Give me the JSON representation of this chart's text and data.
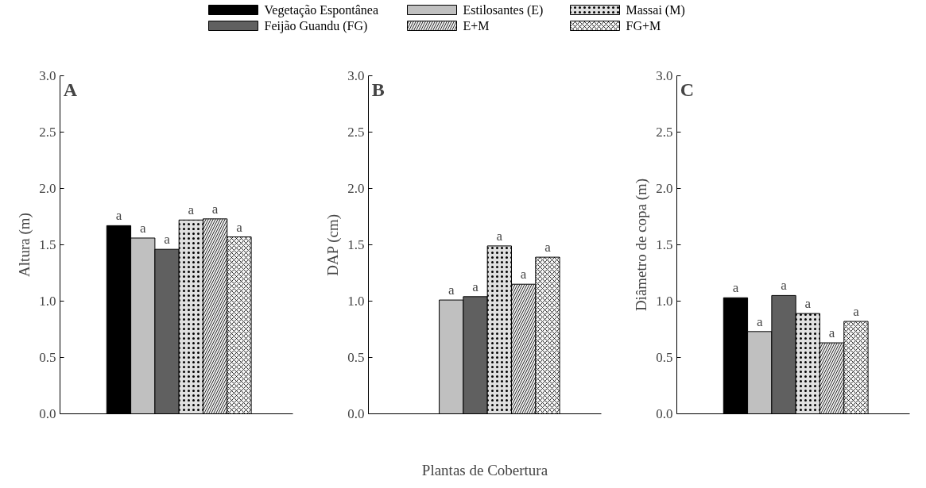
{
  "chart_data": [
    {
      "type": "bar",
      "title": "A",
      "ylabel": "Altura (m)",
      "categories": [
        null
      ],
      "legend": "top",
      "tick_labels": "y",
      "ylim": [
        0,
        3
      ],
      "yticks": [
        {
          "value": 0,
          "label": "0.0"
        },
        {
          "value": 0.5,
          "label": "0.5"
        },
        {
          "value": 1,
          "label": "1.0"
        },
        {
          "value": 1.5,
          "label": "1.5"
        },
        {
          "value": 2,
          "label": "2.0"
        },
        {
          "value": 2.5,
          "label": "2.5"
        },
        {
          "value": 3,
          "label": "3.0"
        }
      ],
      "series": [
        {
          "name": "Vegetação Espontânea",
          "color": "#000000",
          "values": [
            1.67
          ],
          "value_labels": [
            "a"
          ]
        },
        {
          "name": "Estilosantes (E)",
          "color": "#c0c0c0",
          "values": [
            1.56
          ],
          "value_labels": [
            "a"
          ]
        },
        {
          "name": "Feijão Guandu (FG)",
          "color": "#606060",
          "values": [
            1.46
          ],
          "value_labels": [
            "a"
          ]
        },
        {
          "name": "Massai  (M)",
          "color": "#e0e0e0",
          "values": [
            1.72
          ],
          "value_labels": [
            "a"
          ]
        },
        {
          "name": "E+M",
          "color": "#eeeeee",
          "values": [
            1.73
          ],
          "value_labels": [
            "a"
          ]
        },
        {
          "name": "FG+M",
          "color": "#f6f6f6",
          "values": [
            1.57
          ],
          "value_labels": [
            "a"
          ]
        }
      ]
    },
    {
      "type": "bar",
      "title": "B",
      "ylabel": "DAP (cm)",
      "xlabel": "Plantas de Cobertura",
      "categories": [
        null
      ],
      "tick_labels": "y",
      "ylim": [
        0,
        3
      ],
      "yticks": [
        {
          "value": 0,
          "label": "0.0"
        },
        {
          "value": 0.5,
          "label": "0.5"
        },
        {
          "value": 1,
          "label": "1.0"
        },
        {
          "value": 1.5,
          "label": "1.5"
        },
        {
          "value": 2,
          "label": "2.0"
        },
        {
          "value": 2.5,
          "label": "2.5"
        },
        {
          "value": 3,
          "label": "3.0"
        }
      ],
      "series": [
        {
          "color": "#000000",
          "values": [
            null
          ],
          "value_labels": [
            null
          ]
        },
        {
          "color": "#c0c0c0",
          "values": [
            1.01
          ],
          "value_labels": [
            "a"
          ]
        },
        {
          "color": "#606060",
          "values": [
            1.04
          ],
          "value_labels": [
            "a"
          ]
        },
        {
          "color": "#e0e0e0",
          "values": [
            1.49
          ],
          "value_labels": [
            "a"
          ]
        },
        {
          "color": "#eeeeee",
          "values": [
            1.15
          ],
          "value_labels": [
            "a"
          ]
        },
        {
          "color": "#f6f6f6",
          "values": [
            1.39
          ],
          "value_labels": [
            "a"
          ]
        }
      ]
    },
    {
      "type": "bar",
      "title": "C",
      "ylabel": "Diâmetro de copa (m)",
      "categories": [
        null
      ],
      "tick_labels": "y",
      "ylim": [
        0,
        3
      ],
      "yticks": [
        {
          "value": 0,
          "label": "0.0"
        },
        {
          "value": 0.5,
          "label": "0.5"
        },
        {
          "value": 1,
          "label": "1.0"
        },
        {
          "value": 1.5,
          "label": "1.5"
        },
        {
          "value": 2,
          "label": "2.0"
        },
        {
          "value": 2.5,
          "label": "2.5"
        },
        {
          "value": 3,
          "label": "3.0"
        }
      ],
      "series": [
        {
          "color": "#000000",
          "values": [
            1.03
          ],
          "value_labels": [
            "a"
          ]
        },
        {
          "color": "#c0c0c0",
          "values": [
            0.73
          ],
          "value_labels": [
            "a"
          ]
        },
        {
          "color": "#606060",
          "values": [
            1.05
          ],
          "value_labels": [
            "a"
          ]
        },
        {
          "color": "#e0e0e0",
          "values": [
            0.89
          ],
          "value_labels": [
            "a"
          ]
        },
        {
          "color": "#eeeeee",
          "values": [
            0.63
          ],
          "value_labels": [
            "a"
          ]
        },
        {
          "color": "#f6f6f6",
          "values": [
            0.82
          ],
          "value_labels": [
            "a"
          ]
        }
      ]
    }
  ]
}
